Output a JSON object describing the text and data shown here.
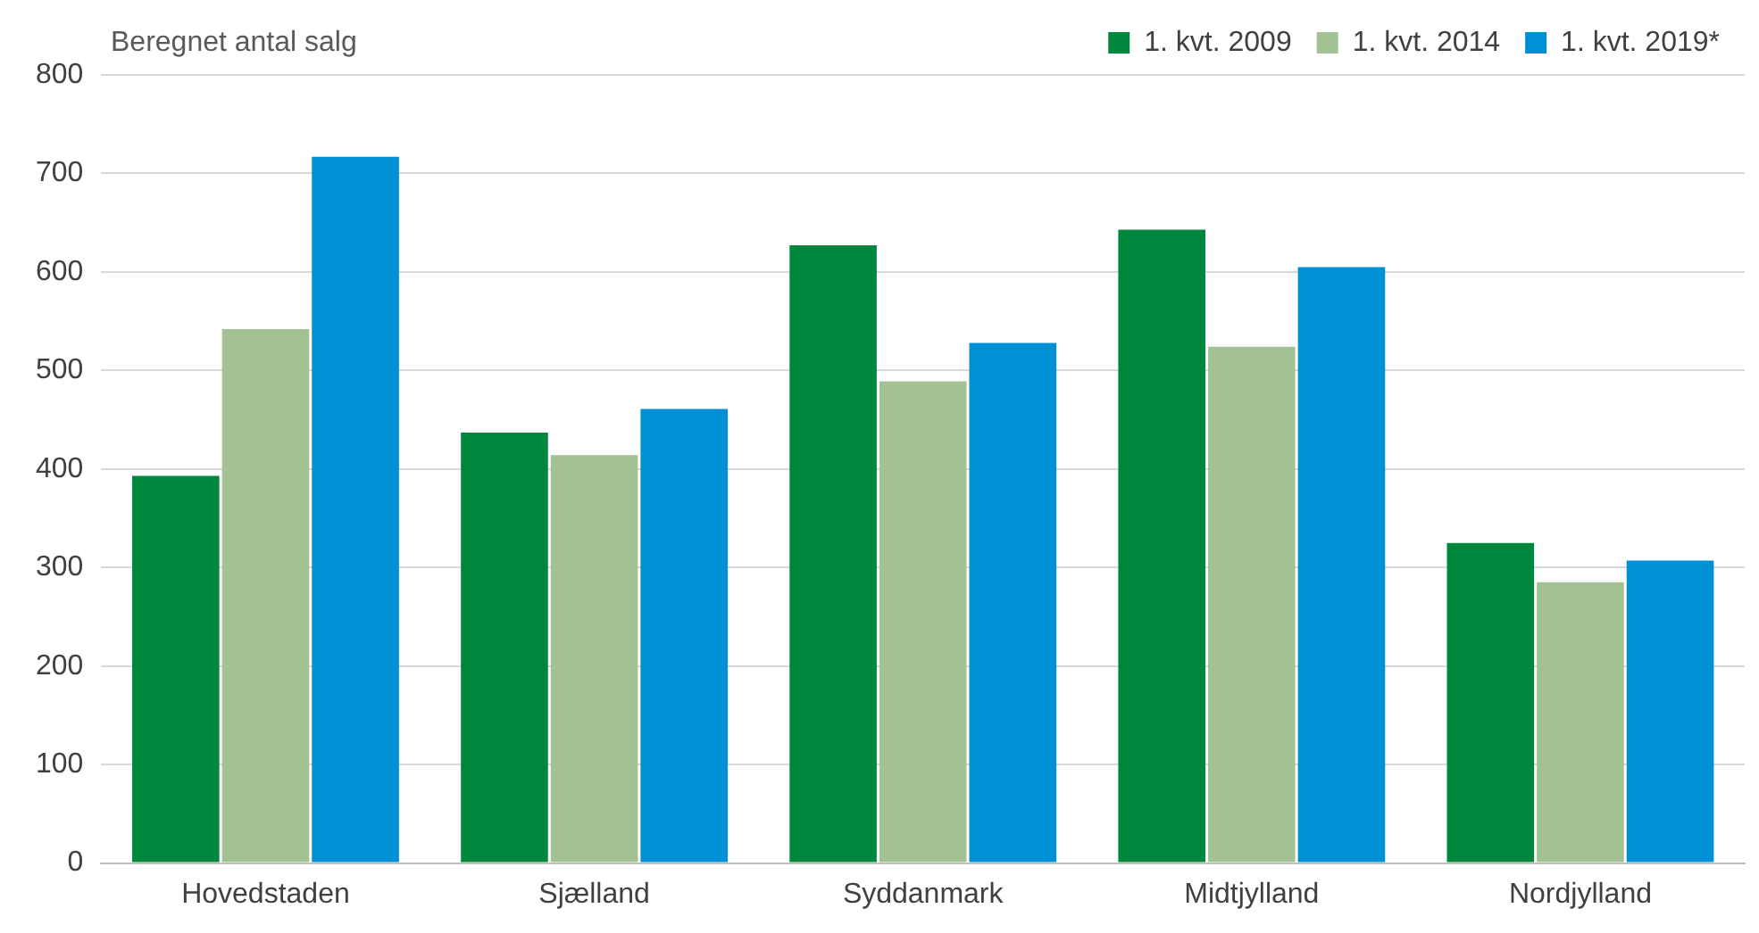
{
  "chart_data": {
    "type": "bar",
    "ylabel": "Beregnet antal salg",
    "categories": [
      "Hovedstaden",
      "Sjælland",
      "Syddanmark",
      "Midtjylland",
      "Nordjylland"
    ],
    "series": [
      {
        "name": "1. kvt. 2009",
        "color": "#00873e",
        "values": [
          393,
          437,
          627,
          643,
          325
        ]
      },
      {
        "name": "1. kvt. 2014",
        "color": "#a3c293",
        "values": [
          542,
          414,
          489,
          524,
          285
        ]
      },
      {
        "name": "1. kvt. 2019*",
        "color": "#0090d6",
        "values": [
          717,
          461,
          528,
          605,
          307
        ]
      }
    ],
    "ylim": [
      0,
      800
    ],
    "yticks": [
      0,
      100,
      200,
      300,
      400,
      500,
      600,
      700,
      800
    ],
    "grid": "y",
    "legend": "top right"
  }
}
